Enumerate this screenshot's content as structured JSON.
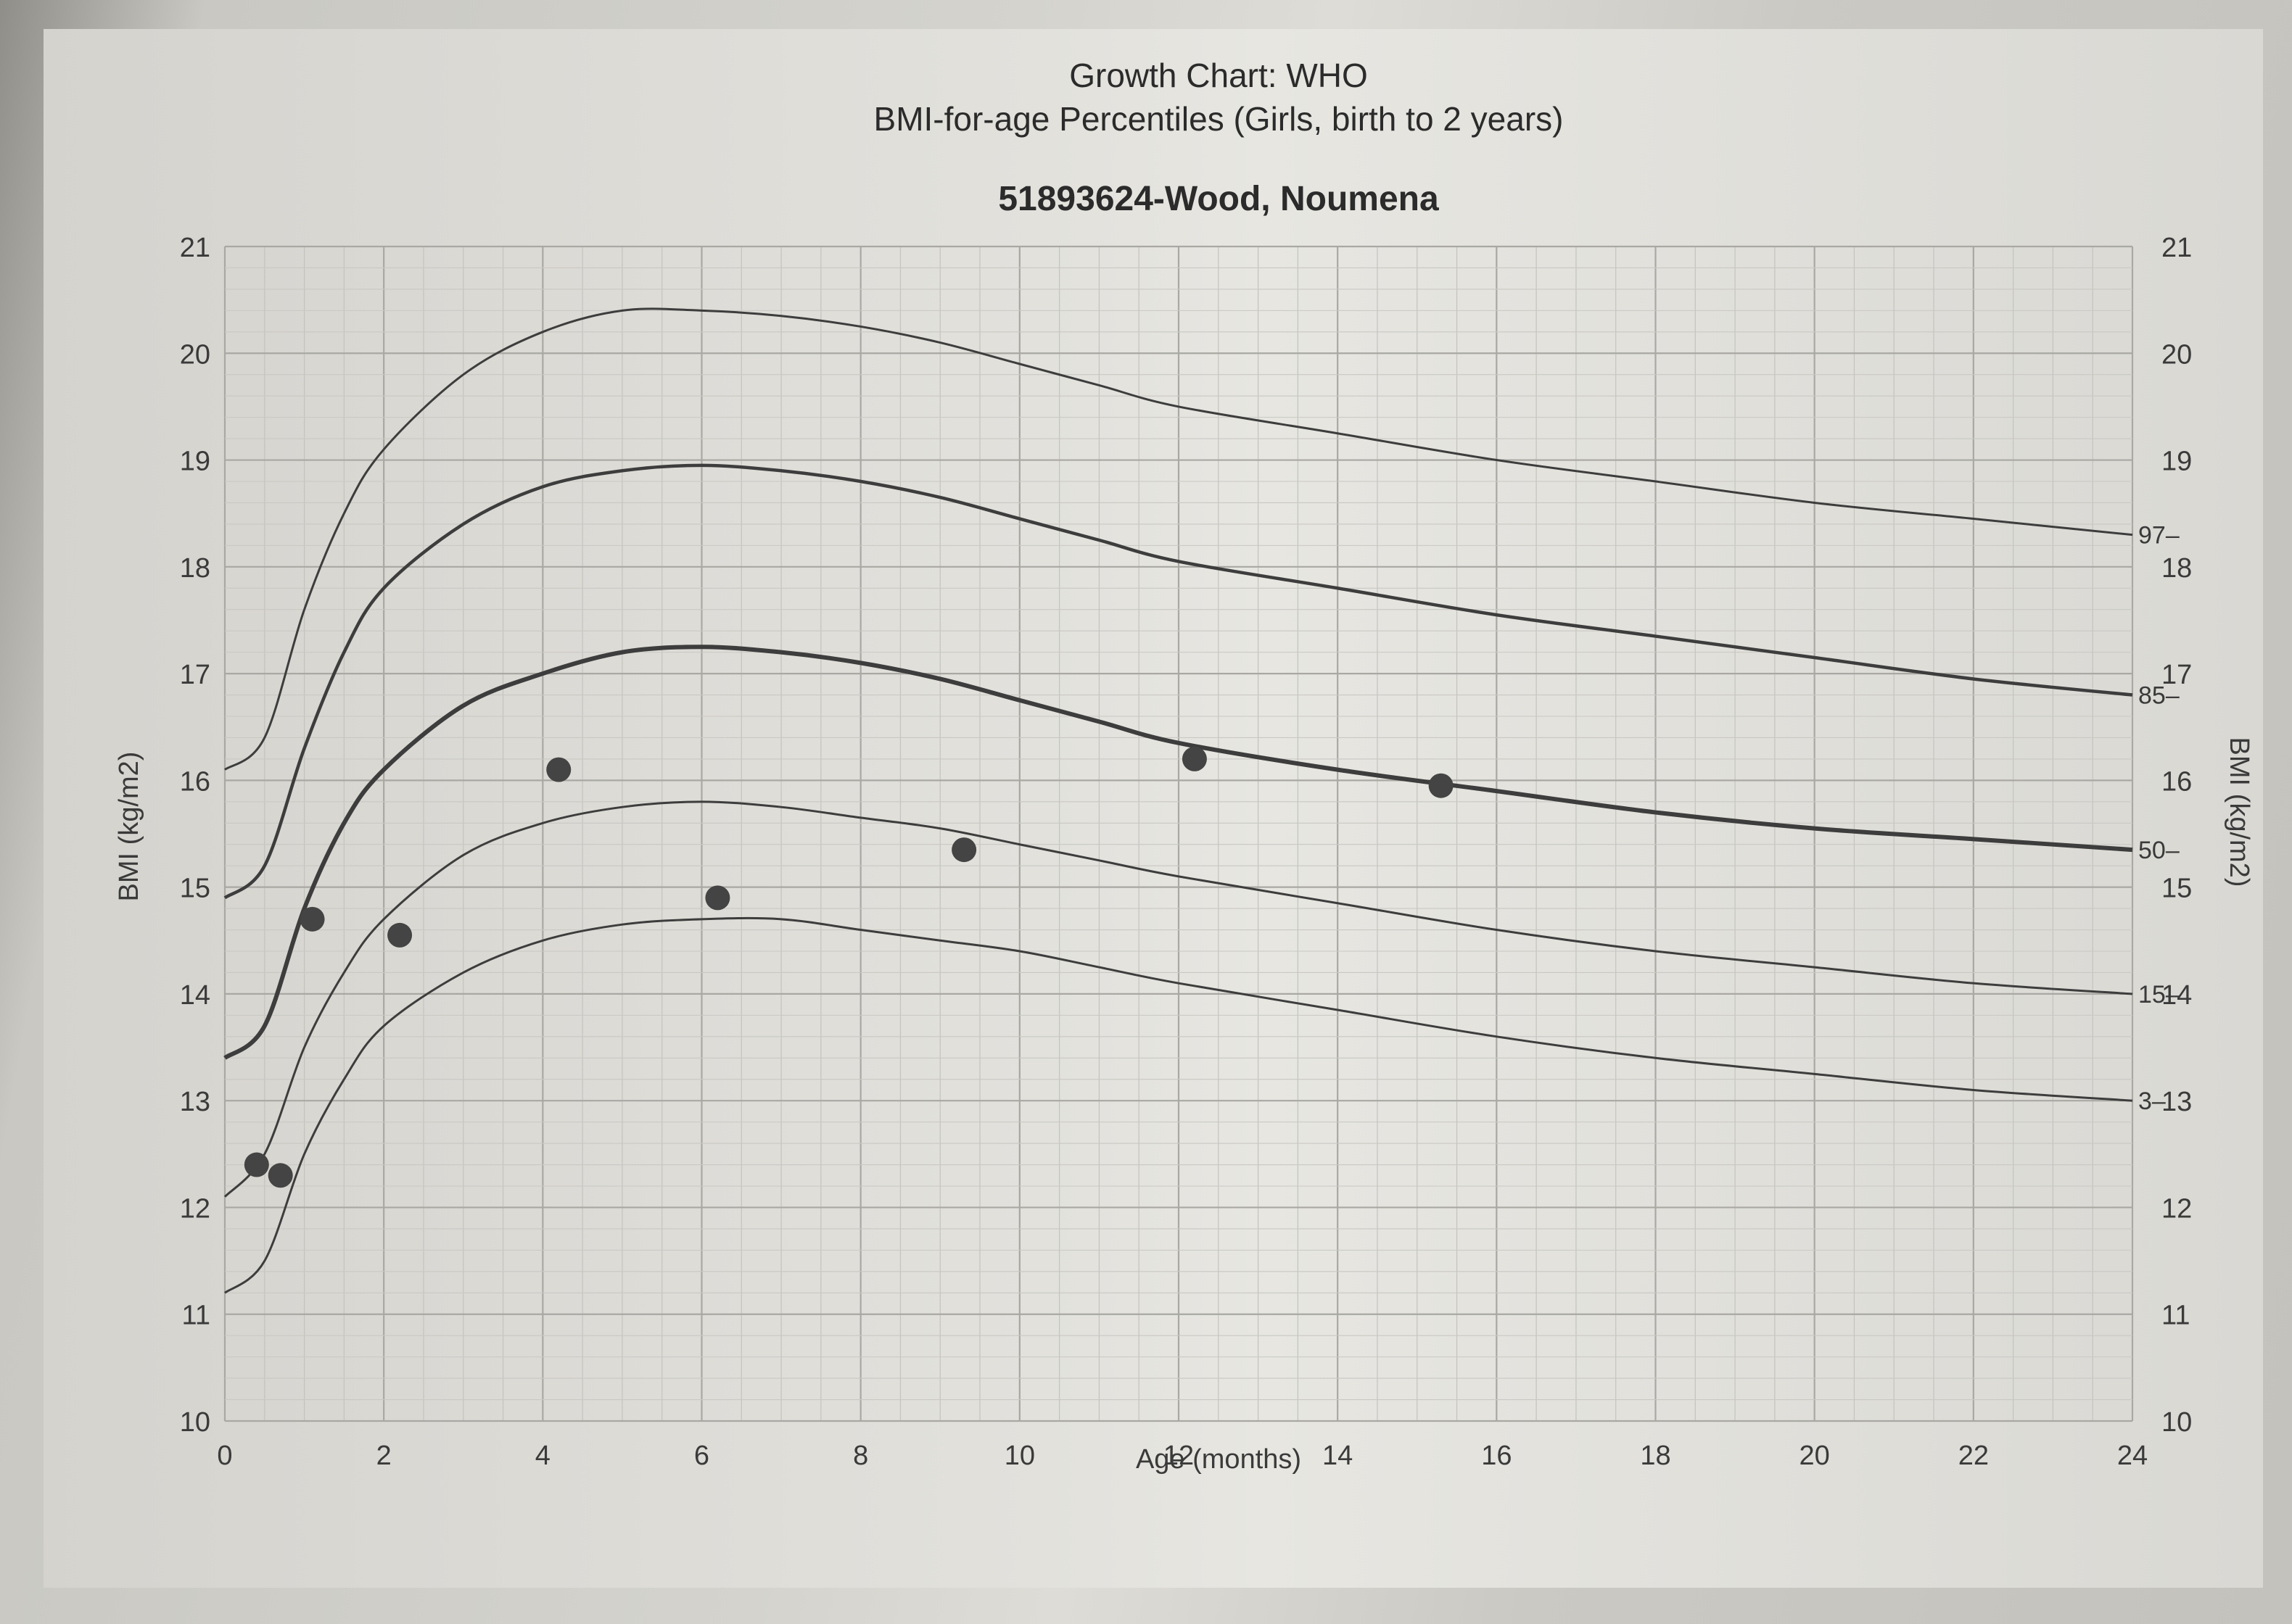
{
  "chart_data": {
    "type": "line",
    "title": "Growth Chart: WHO",
    "subtitle": "BMI-for-age Percentiles (Girls, birth to 2 years)",
    "patient": "51893624-Wood, Noumena",
    "xlabel": "Age (months)",
    "ylabel": "BMI (kg/m2)",
    "xlim": [
      0,
      24
    ],
    "ylim": [
      10,
      21
    ],
    "x_ticks": [
      0,
      2,
      4,
      6,
      8,
      10,
      12,
      14,
      16,
      18,
      20,
      22,
      24
    ],
    "y_ticks": [
      10,
      11,
      12,
      13,
      14,
      15,
      16,
      17,
      18,
      19,
      20,
      21
    ],
    "grid": true,
    "series": [
      {
        "name": "97",
        "label": "97–",
        "x": [
          0,
          0.5,
          1,
          1.5,
          2,
          3,
          4,
          5,
          6,
          7,
          8,
          9,
          10,
          11,
          12,
          14,
          16,
          18,
          20,
          22,
          24
        ],
        "values": [
          16.1,
          16.4,
          17.6,
          18.5,
          19.1,
          19.8,
          20.2,
          20.4,
          20.4,
          20.35,
          20.25,
          20.1,
          19.9,
          19.7,
          19.5,
          19.25,
          19.0,
          18.8,
          18.6,
          18.45,
          18.3
        ]
      },
      {
        "name": "85",
        "label": "85–",
        "x": [
          0,
          0.5,
          1,
          1.5,
          2,
          3,
          4,
          5,
          6,
          7,
          8,
          9,
          10,
          11,
          12,
          14,
          16,
          18,
          20,
          22,
          24
        ],
        "values": [
          14.9,
          15.2,
          16.3,
          17.2,
          17.8,
          18.4,
          18.75,
          18.9,
          18.95,
          18.9,
          18.8,
          18.65,
          18.45,
          18.25,
          18.05,
          17.8,
          17.55,
          17.35,
          17.15,
          16.95,
          16.8
        ]
      },
      {
        "name": "50",
        "label": "50–",
        "x": [
          0,
          0.5,
          1,
          1.5,
          2,
          3,
          4,
          5,
          6,
          7,
          8,
          9,
          10,
          11,
          12,
          14,
          16,
          18,
          20,
          22,
          24
        ],
        "values": [
          13.4,
          13.7,
          14.8,
          15.6,
          16.1,
          16.7,
          17.0,
          17.2,
          17.25,
          17.2,
          17.1,
          16.95,
          16.75,
          16.55,
          16.35,
          16.1,
          15.9,
          15.7,
          15.55,
          15.45,
          15.35
        ]
      },
      {
        "name": "15",
        "label": "15–",
        "x": [
          0,
          0.5,
          1,
          1.5,
          2,
          3,
          4,
          5,
          6,
          7,
          8,
          9,
          10,
          11,
          12,
          14,
          16,
          18,
          20,
          22,
          24
        ],
        "values": [
          12.1,
          12.5,
          13.5,
          14.2,
          14.7,
          15.3,
          15.6,
          15.75,
          15.8,
          15.75,
          15.65,
          15.55,
          15.4,
          15.25,
          15.1,
          14.85,
          14.6,
          14.4,
          14.25,
          14.1,
          14.0
        ]
      },
      {
        "name": "3",
        "label": "3–",
        "x": [
          0,
          0.5,
          1,
          1.5,
          2,
          3,
          4,
          5,
          6,
          7,
          8,
          9,
          10,
          11,
          12,
          14,
          16,
          18,
          20,
          22,
          24
        ],
        "values": [
          11.2,
          11.5,
          12.5,
          13.2,
          13.7,
          14.2,
          14.5,
          14.65,
          14.7,
          14.7,
          14.6,
          14.5,
          14.4,
          14.25,
          14.1,
          13.85,
          13.6,
          13.4,
          13.25,
          13.1,
          13.0
        ]
      }
    ],
    "patient_points": {
      "x": [
        0.4,
        0.7,
        1.1,
        2.2,
        4.2,
        6.2,
        9.3,
        12.2,
        15.3
      ],
      "values": [
        12.4,
        12.3,
        14.7,
        14.55,
        16.1,
        14.9,
        15.35,
        16.2,
        15.95
      ]
    }
  }
}
